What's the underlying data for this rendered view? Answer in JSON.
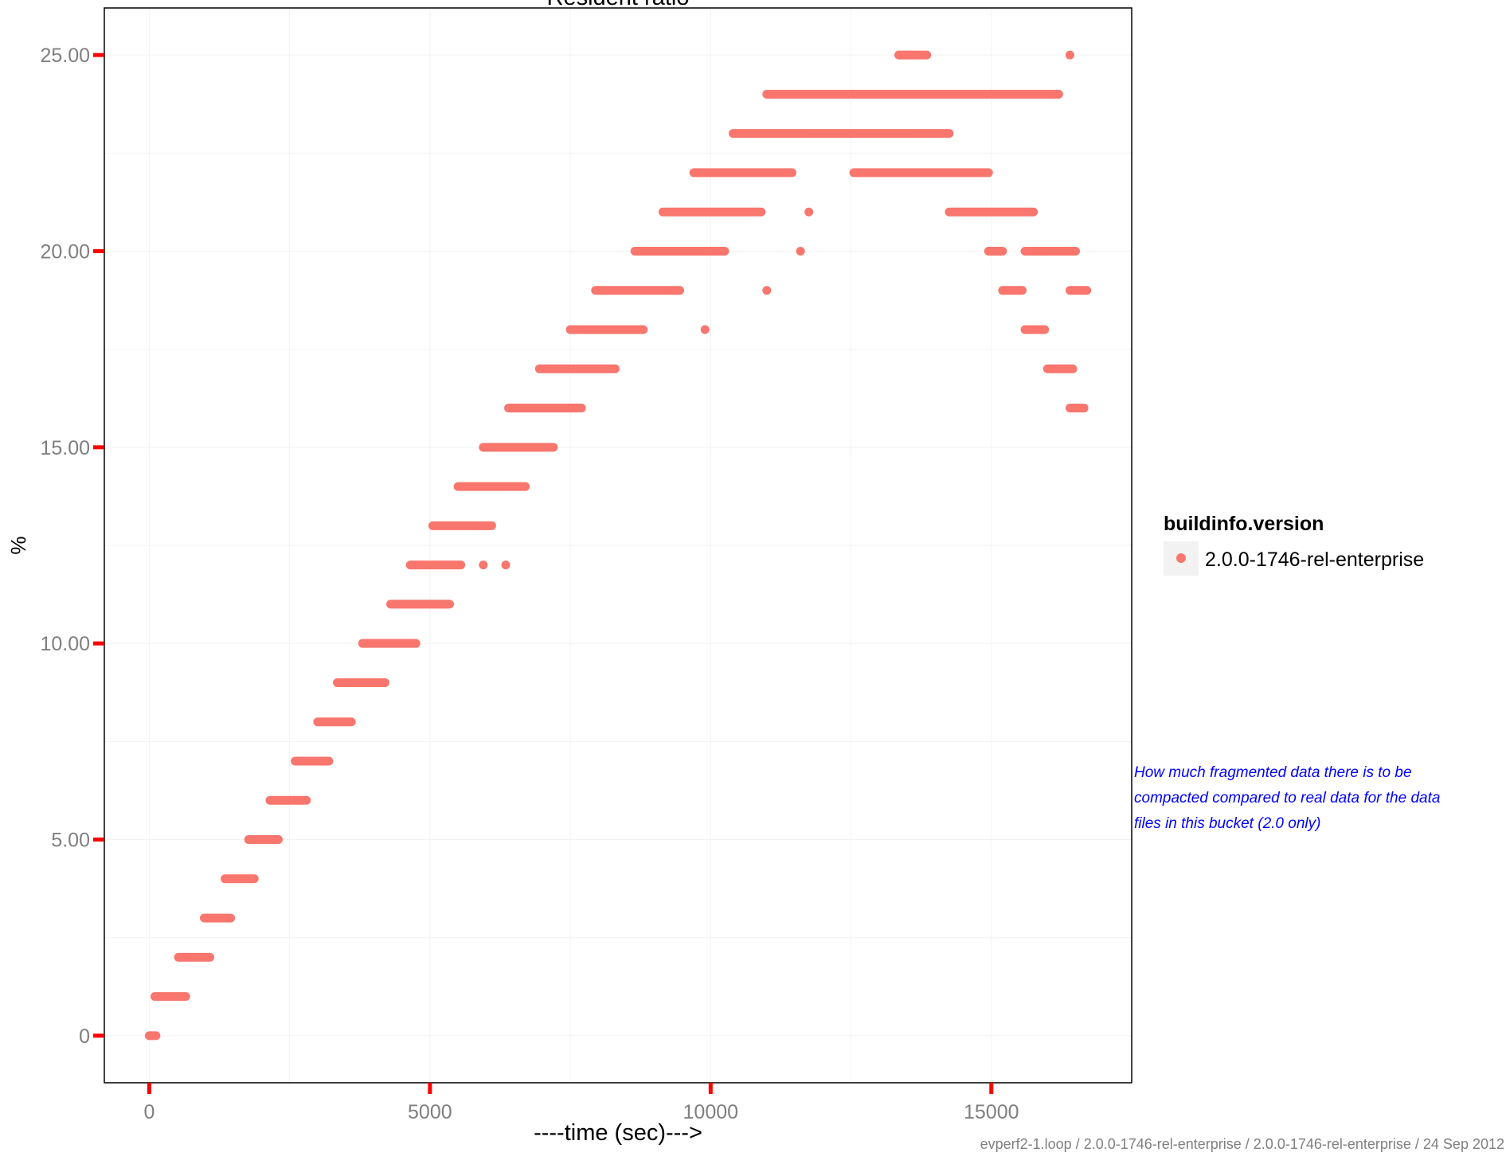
{
  "chart_data": {
    "type": "scatter",
    "title": "Resident ratio",
    "xlabel": "----time (sec)--->",
    "ylabel": "%",
    "xlim": [
      -800,
      17500
    ],
    "ylim": [
      -1.2,
      26.2
    ],
    "x_ticks": [
      0,
      5000,
      10000,
      15000
    ],
    "x_tick_labels": [
      "0",
      "5000",
      "10000",
      "15000"
    ],
    "y_ticks": [
      0,
      5,
      10,
      15,
      20,
      25
    ],
    "y_tick_labels": [
      "0",
      "5.00",
      "10.00",
      "15.00",
      "20.00",
      "25.00"
    ],
    "grid": true,
    "legend": {
      "title": "buildinfo.version",
      "placement": "right",
      "entries": [
        "2.0.0-1746-rel-enterprise"
      ]
    },
    "point_color": "#F8766D",
    "tick_color": "#ff0000",
    "series": [
      {
        "name": "2.0.0-1746-rel-enterprise",
        "segments": [
          {
            "y": 0,
            "x0": 0,
            "x1": 120
          },
          {
            "y": 1,
            "x0": 100,
            "x1": 650
          },
          {
            "y": 2,
            "x0": 520,
            "x1": 1080
          },
          {
            "y": 3,
            "x0": 980,
            "x1": 1450
          },
          {
            "y": 4,
            "x0": 1350,
            "x1": 1870
          },
          {
            "y": 5,
            "x0": 1770,
            "x1": 2300
          },
          {
            "y": 6,
            "x0": 2150,
            "x1": 2750
          },
          {
            "y": 7,
            "x0": 2600,
            "x1": 3200
          },
          {
            "y": 8,
            "x0": 3000,
            "x1": 3600
          },
          {
            "y": 9,
            "x0": 3350,
            "x1": 4200
          },
          {
            "y": 10,
            "x0": 3800,
            "x1": 4750
          },
          {
            "y": 11,
            "x0": 4300,
            "x1": 5350
          },
          {
            "y": 12,
            "x0": 4650,
            "x1": 5550
          },
          {
            "y": 13,
            "x0": 5050,
            "x1": 6100
          },
          {
            "y": 14,
            "x0": 5500,
            "x1": 6700
          },
          {
            "y": 15,
            "x0": 5950,
            "x1": 7200
          },
          {
            "y": 16,
            "x0": 6400,
            "x1": 7700
          },
          {
            "y": 17,
            "x0": 6950,
            "x1": 8300
          },
          {
            "y": 18,
            "x0": 7500,
            "x1": 8800
          },
          {
            "y": 19,
            "x0": 7950,
            "x1": 9450
          },
          {
            "y": 20,
            "x0": 8650,
            "x1": 10250
          },
          {
            "y": 21,
            "x0": 9150,
            "x1": 10900
          },
          {
            "y": 22,
            "x0": 9700,
            "x1": 11450
          },
          {
            "y": 23,
            "x0": 10400,
            "x1": 14250
          },
          {
            "y": 24,
            "x0": 11000,
            "x1": 16200
          },
          {
            "y": 22,
            "x0": 12550,
            "x1": 14950
          },
          {
            "y": 21,
            "x0": 14250,
            "x1": 15750
          },
          {
            "y": 20,
            "x0": 14950,
            "x1": 15200
          },
          {
            "y": 20,
            "x0": 15600,
            "x1": 16500
          },
          {
            "y": 19,
            "x0": 15200,
            "x1": 15550
          },
          {
            "y": 19,
            "x0": 16400,
            "x1": 16700
          },
          {
            "y": 18,
            "x0": 15600,
            "x1": 15950
          },
          {
            "y": 17,
            "x0": 16000,
            "x1": 16450
          },
          {
            "y": 16,
            "x0": 16400,
            "x1": 16650
          },
          {
            "y": 25,
            "x0": 13350,
            "x1": 13850
          }
        ],
        "points": [
          {
            "x": 2800,
            "y": 6
          },
          {
            "x": 5950,
            "y": 12
          },
          {
            "x": 6350,
            "y": 12
          },
          {
            "x": 9900,
            "y": 18
          },
          {
            "x": 11000,
            "y": 19
          },
          {
            "x": 11600,
            "y": 20
          },
          {
            "x": 11750,
            "y": 21
          },
          {
            "x": 16400,
            "y": 25
          }
        ]
      }
    ]
  },
  "annotation": "How much fragmented data there is to be compacted compared to real data for the data files in this bucket (2.0 only)",
  "footer": "evperf2-1.loop / 2.0.0-1746-rel-enterprise / 2.0.0-1746-rel-enterprise / 24 Sep 2012"
}
